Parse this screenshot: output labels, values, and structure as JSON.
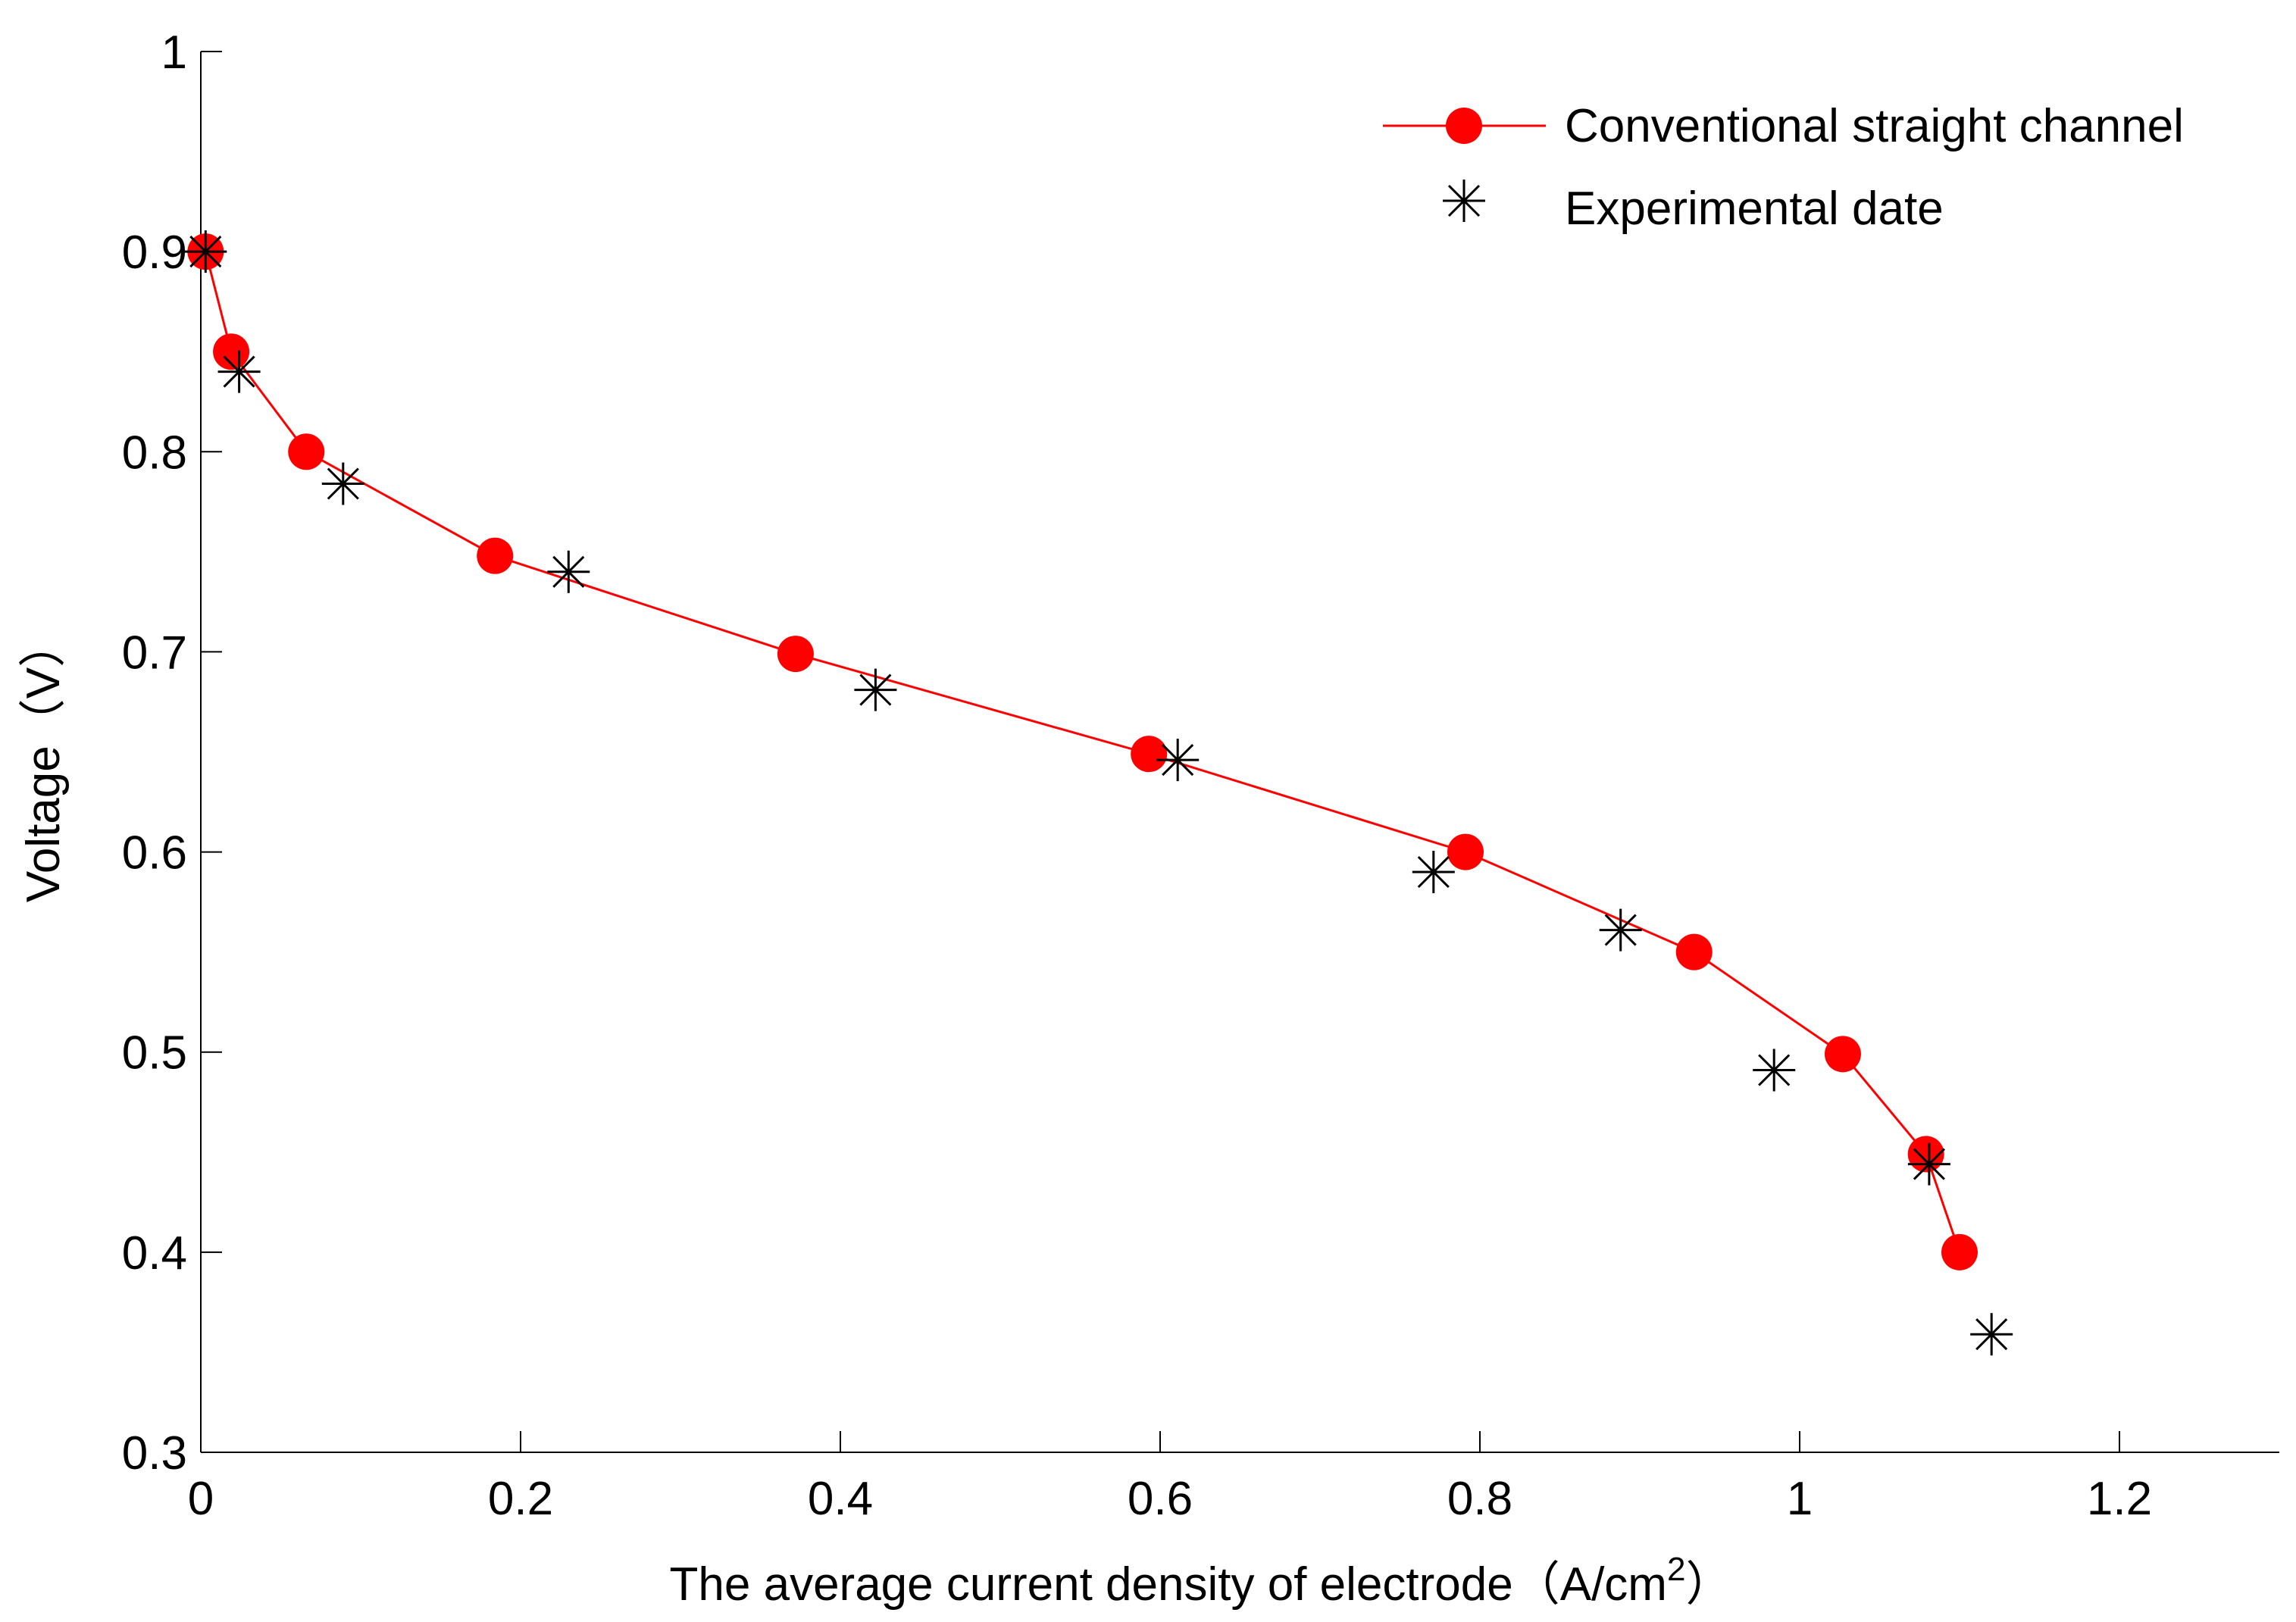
{
  "chart_data": {
    "type": "line",
    "title": "",
    "xlabel": "The average current density of electrode（A/cm",
    "xlabel_superscript": "2",
    "xlabel_suffix": "）",
    "ylabel": "Voltage（V）",
    "xlim": [
      0,
      1.3
    ],
    "ylim": [
      0.3,
      1.0
    ],
    "xticks": [
      0,
      0.2,
      0.4,
      0.6,
      0.8,
      1.0,
      1.2
    ],
    "xtick_labels": [
      "0",
      "0.2",
      "0.4",
      "0.6",
      "0.8",
      "1",
      "1.2"
    ],
    "yticks": [
      0.3,
      0.4,
      0.5,
      0.6,
      0.7,
      0.8,
      0.9,
      1.0
    ],
    "ytick_labels": [
      "0.3",
      "0.4",
      "0.5",
      "0.6",
      "0.7",
      "0.8",
      "0.9",
      "1"
    ],
    "grid": false,
    "legend_position": "top-right",
    "series": [
      {
        "name": "Conventional straight channel",
        "style": "line-with-circles",
        "color": "#ff0000",
        "x": [
          0.003,
          0.019,
          0.066,
          0.184,
          0.372,
          0.593,
          0.791,
          0.934,
          1.027,
          1.079,
          1.1
        ],
        "y": [
          0.9,
          0.85,
          0.8,
          0.748,
          0.699,
          0.649,
          0.6,
          0.55,
          0.499,
          0.449,
          0.4
        ]
      },
      {
        "name": "Experimental date",
        "style": "asterisk-markers",
        "color": "#000000",
        "x": [
          0.003,
          0.024,
          0.089,
          0.23,
          0.422,
          0.611,
          0.771,
          0.888,
          0.984,
          1.081,
          1.12
        ],
        "y": [
          0.9,
          0.84,
          0.784,
          0.74,
          0.681,
          0.646,
          0.59,
          0.561,
          0.491,
          0.444,
          0.359
        ]
      }
    ]
  }
}
